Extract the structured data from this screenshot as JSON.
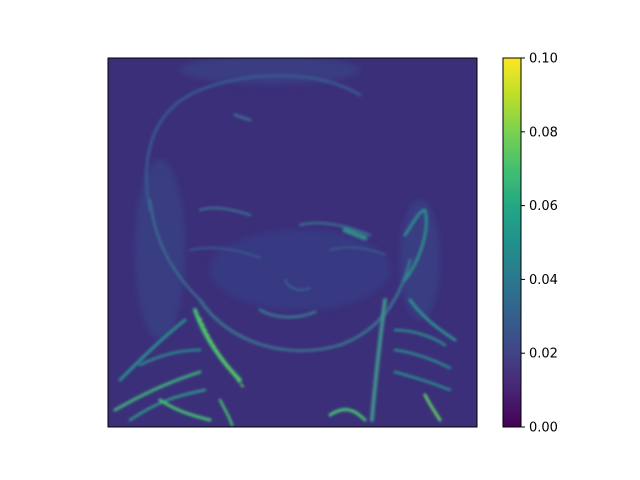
{
  "chart_data": {
    "type": "heatmap",
    "title": "",
    "xlabel": "",
    "ylabel": "",
    "image_axes_ticks": false,
    "image_content": "grayscale portrait of a child's face and shoulders rendered as edge-magnitude map",
    "colormap": "viridis",
    "colors": {
      "vmin_color": "#440154",
      "q25_color": "#3b528b",
      "mid_color": "#21918c",
      "q75_color": "#5ec962",
      "vmax_color": "#fde725",
      "background_value_color": "#3b2f7a"
    },
    "colorbar": {
      "vmin": 0.0,
      "vmax": 0.1,
      "ticks": [
        "0.00",
        "0.02",
        "0.04",
        "0.06",
        "0.08",
        "0.10"
      ],
      "placement": "right"
    }
  }
}
